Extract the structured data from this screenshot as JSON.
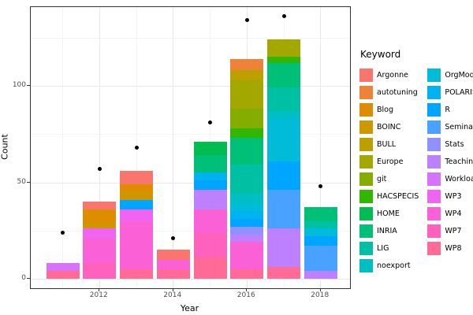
{
  "chart_data": {
    "type": "bar",
    "stacked": true,
    "overlay": "scatter-points",
    "title": "",
    "xlabel": "Year",
    "ylabel": "Count",
    "legend_title": "Keyword",
    "legend_position": "right",
    "grid": true,
    "x_ticks": [
      2012,
      2014,
      2016,
      2018
    ],
    "x_minor": [
      2011,
      2013,
      2015,
      2017
    ],
    "y_ticks": [
      0,
      50,
      100
    ],
    "y_minor": [
      25,
      75,
      125
    ],
    "ylim": [
      0,
      141
    ],
    "years": [
      2011,
      2012,
      2013,
      2014,
      2015,
      2016,
      2017,
      2018
    ],
    "keywords": [
      {
        "name": "Argonne",
        "color": "#F8766D"
      },
      {
        "name": "autotuning",
        "color": "#EF8239"
      },
      {
        "name": "Blog",
        "color": "#DF8D00"
      },
      {
        "name": "BOINC",
        "color": "#CE9700"
      },
      {
        "name": "BULL",
        "color": "#BCA000"
      },
      {
        "name": "Europe",
        "color": "#A2A800"
      },
      {
        "name": "git",
        "color": "#84AD00"
      },
      {
        "name": "HACSPECIS",
        "color": "#33B600"
      },
      {
        "name": "HOME",
        "color": "#00BC51"
      },
      {
        "name": "INRIA",
        "color": "#00BF77"
      },
      {
        "name": "LIG",
        "color": "#00C0A3"
      },
      {
        "name": "noexport",
        "color": "#00BFC4"
      },
      {
        "name": "OrgMode",
        "color": "#00BCD8"
      },
      {
        "name": "POLARIS",
        "color": "#00B2F0"
      },
      {
        "name": "R",
        "color": "#00A5FF"
      },
      {
        "name": "Seminar",
        "color": "#49A2FF"
      },
      {
        "name": "Stats",
        "color": "#9190FF"
      },
      {
        "name": "Teaching",
        "color": "#BD80FF"
      },
      {
        "name": "Workload",
        "color": "#D573FB"
      },
      {
        "name": "WP3",
        "color": "#EF65F1"
      },
      {
        "name": "WP4",
        "color": "#FB61D7"
      },
      {
        "name": "WP7",
        "color": "#FF62BC"
      },
      {
        "name": "WP8",
        "color": "#FF6B96"
      }
    ],
    "bars": [
      {
        "year": 2011,
        "total": 8,
        "segments": [
          {
            "keyword": "WP8",
            "value": 4
          },
          {
            "keyword": "Workload",
            "value": 4
          }
        ]
      },
      {
        "year": 2012,
        "total": 40,
        "segments": [
          {
            "keyword": "WP7",
            "value": 8
          },
          {
            "keyword": "WP4",
            "value": 13
          },
          {
            "keyword": "WP3",
            "value": 5
          },
          {
            "keyword": "BOINC",
            "value": 3
          },
          {
            "keyword": "Blog",
            "value": 7
          },
          {
            "keyword": "Argonne",
            "value": 4
          }
        ]
      },
      {
        "year": 2013,
        "total": 56,
        "segments": [
          {
            "keyword": "WP8",
            "value": 5
          },
          {
            "keyword": "WP4",
            "value": 25
          },
          {
            "keyword": "WP3",
            "value": 6
          },
          {
            "keyword": "R",
            "value": 5
          },
          {
            "keyword": "BOINC",
            "value": 4
          },
          {
            "keyword": "Blog",
            "value": 4
          },
          {
            "keyword": "Argonne",
            "value": 7
          }
        ]
      },
      {
        "year": 2014,
        "total": 15,
        "segments": [
          {
            "keyword": "WP8",
            "value": 5
          },
          {
            "keyword": "WP4",
            "value": 5
          },
          {
            "keyword": "Argonne",
            "value": 5
          }
        ]
      },
      {
        "year": 2015,
        "total": 71,
        "segments": [
          {
            "keyword": "WP8",
            "value": 11
          },
          {
            "keyword": "WP7",
            "value": 13
          },
          {
            "keyword": "WP4",
            "value": 12
          },
          {
            "keyword": "Teaching",
            "value": 10
          },
          {
            "keyword": "R",
            "value": 5
          },
          {
            "keyword": "POLARIS",
            "value": 4
          },
          {
            "keyword": "INRIA",
            "value": 9
          },
          {
            "keyword": "HOME",
            "value": 7
          }
        ]
      },
      {
        "year": 2016,
        "total": 114,
        "segments": [
          {
            "keyword": "WP8",
            "value": 5
          },
          {
            "keyword": "WP4",
            "value": 14
          },
          {
            "keyword": "Teaching",
            "value": 4
          },
          {
            "keyword": "Stats",
            "value": 4
          },
          {
            "keyword": "R",
            "value": 4
          },
          {
            "keyword": "POLARIS",
            "value": 4
          },
          {
            "keyword": "OrgMode",
            "value": 4
          },
          {
            "keyword": "noexport",
            "value": 5
          },
          {
            "keyword": "LIG",
            "value": 15
          },
          {
            "keyword": "INRIA",
            "value": 14
          },
          {
            "keyword": "HACSPECIS",
            "value": 5
          },
          {
            "keyword": "git",
            "value": 10
          },
          {
            "keyword": "Europe",
            "value": 15
          },
          {
            "keyword": "BULL",
            "value": 5
          },
          {
            "keyword": "autotuning",
            "value": 6
          }
        ]
      },
      {
        "year": 2017,
        "total": 124,
        "segments": [
          {
            "keyword": "WP8",
            "value": 6
          },
          {
            "keyword": "Teaching",
            "value": 20
          },
          {
            "keyword": "Seminar",
            "value": 20
          },
          {
            "keyword": "R",
            "value": 15
          },
          {
            "keyword": "OrgMode",
            "value": 22
          },
          {
            "keyword": "noexport",
            "value": 4
          },
          {
            "keyword": "LIG",
            "value": 12
          },
          {
            "keyword": "INRIA",
            "value": 13
          },
          {
            "keyword": "HACSPECIS",
            "value": 3
          },
          {
            "keyword": "Europe",
            "value": 9
          }
        ]
      },
      {
        "year": 2018,
        "total": 37,
        "segments": [
          {
            "keyword": "Teaching",
            "value": 4
          },
          {
            "keyword": "Seminar",
            "value": 13
          },
          {
            "keyword": "R",
            "value": 5
          },
          {
            "keyword": "OrgMode",
            "value": 4
          },
          {
            "keyword": "LIG",
            "value": 4
          },
          {
            "keyword": "INRIA",
            "value": 7
          }
        ]
      }
    ],
    "points": [
      {
        "year": 2011,
        "value": 24
      },
      {
        "year": 2012,
        "value": 57
      },
      {
        "year": 2013,
        "value": 68
      },
      {
        "year": 2014,
        "value": 21
      },
      {
        "year": 2015,
        "value": 81
      },
      {
        "year": 2016,
        "value": 134
      },
      {
        "year": 2017,
        "value": 136
      },
      {
        "year": 2018,
        "value": 48
      }
    ],
    "style_colors": {
      "grid_major": "#E8E8E8",
      "grid_minor": "#F4F4F4",
      "panel_border": "#333333",
      "tick_text": "#4D4D4D",
      "point": "#000000"
    }
  }
}
